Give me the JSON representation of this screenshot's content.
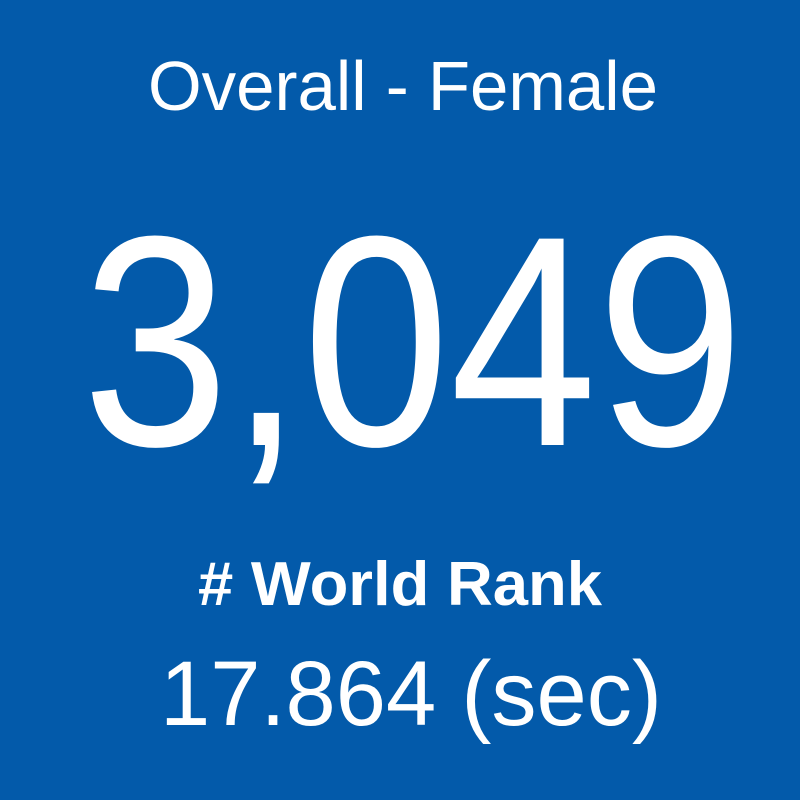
{
  "tile": {
    "title": "Overall - Female",
    "rank": "3,049",
    "label": "# World Rank",
    "time": "17.864 (sec)"
  }
}
